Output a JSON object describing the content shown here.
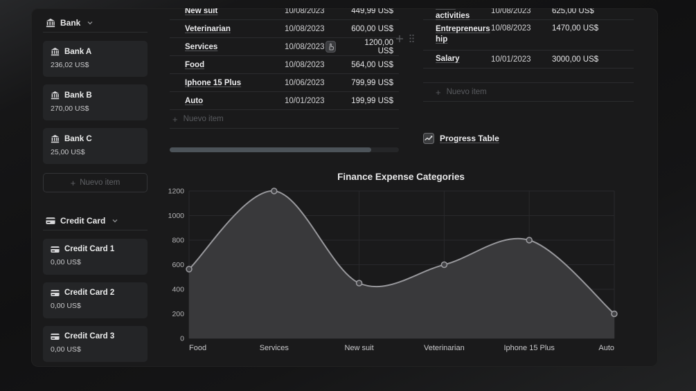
{
  "sidebar": {
    "bank_section": {
      "label": "Bank",
      "items": [
        {
          "name": "Bank A",
          "value": "236,02 US$"
        },
        {
          "name": "Bank B",
          "value": "270,00 US$"
        },
        {
          "name": "Bank C",
          "value": "25,00 US$"
        }
      ],
      "new_item_label": "Nuevo item"
    },
    "credit_section": {
      "label": "Credit Card",
      "items": [
        {
          "name": "Credit Card 1",
          "value": "0,00 US$"
        },
        {
          "name": "Credit Card 2",
          "value": "0,00 US$"
        },
        {
          "name": "Credit Card 3",
          "value": "0,00 US$"
        }
      ]
    }
  },
  "expense_table": {
    "rows": [
      {
        "name": "New suit",
        "date": "10/08/2023",
        "amount": "449,99 US$"
      },
      {
        "name": "Veterinarian",
        "date": "10/08/2023",
        "amount": "600,00 US$"
      },
      {
        "name": "Services",
        "date": "10/08/2023",
        "amount": "1200,00 US$"
      },
      {
        "name": "Food",
        "date": "10/08/2023",
        "amount": "564,00 US$"
      },
      {
        "name": "Iphone 15 Plus",
        "date": "10/06/2023",
        "amount": "799,99 US$"
      },
      {
        "name": "Auto",
        "date": "10/01/2023",
        "amount": "199,99 US$"
      }
    ],
    "new_item_label": "Nuevo item"
  },
  "income_table": {
    "rows": [
      {
        "name": "Extra activities",
        "date": "10/08/2023",
        "amount": "625,00 US$"
      },
      {
        "name": "Entrepreneurship",
        "date": "10/08/2023",
        "amount": "1470,00 US$"
      },
      {
        "name": "Salary",
        "date": "10/01/2023",
        "amount": "3000,00 US$"
      }
    ],
    "new_item_label": "Nuevo item"
  },
  "progress_link": {
    "label": "Progress Table"
  },
  "icons": {
    "plus": "+"
  },
  "colors": {
    "panel_bg": "#1a1a1b",
    "card_bg": "#242527",
    "divider": "#2e2f31",
    "scroll_thumb": "#4c5359"
  },
  "chart_data": {
    "type": "area",
    "title": "Finance Expense Categories",
    "categories": [
      "Food",
      "Services",
      "New suit",
      "Veterinarian",
      "Iphone 15 Plus",
      "Auto"
    ],
    "values": [
      564,
      1200,
      449.99,
      600,
      799.99,
      199.99
    ],
    "xlabel": "",
    "ylabel": "",
    "ylim": [
      0,
      1200
    ],
    "ytick_step": 200,
    "grid": true,
    "legend": "none",
    "line_color": "#98989c",
    "fill_color": "#39393b",
    "marker_fill": "#424245",
    "marker_stroke": "#9d9da1",
    "grid_color": "#29292c",
    "tick_color": "#b4b4b6",
    "xtick_color": "#cacacc"
  }
}
